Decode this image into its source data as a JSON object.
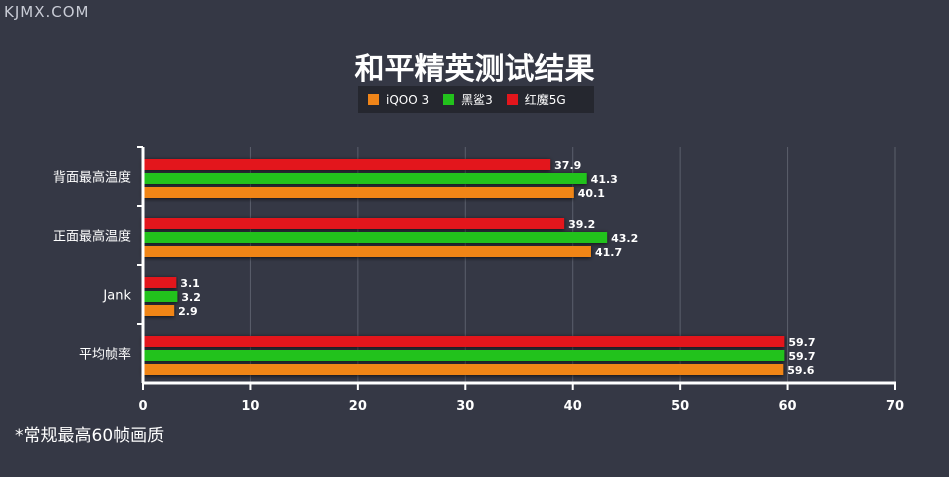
{
  "watermark": "KJMX.COM",
  "footnote": "*常规最高60帧画质",
  "colors": {
    "background": "#353845",
    "legend_bg": "#25272f",
    "grid": "#5b5f6c",
    "axis": "#ffffff"
  },
  "chart_data": {
    "type": "bar",
    "orientation": "horizontal",
    "title": "和平精英测试结果",
    "categories": [
      "背面最高温度",
      "正面最高温度",
      "Jank",
      "平均帧率"
    ],
    "series": [
      {
        "name": "iQOO 3",
        "color": "#f08519",
        "values": [
          40.1,
          41.7,
          2.9,
          59.6
        ]
      },
      {
        "name": "黑鲨3",
        "color": "#22c21c",
        "values": [
          41.3,
          43.2,
          3.2,
          59.7
        ]
      },
      {
        "name": "红魔5G",
        "color": "#e3161c",
        "values": [
          37.9,
          39.2,
          3.1,
          59.7
        ]
      }
    ],
    "bar_order_top_to_bottom": [
      "红魔5G",
      "黑鲨3",
      "iQOO 3"
    ],
    "xlim": [
      0,
      70
    ],
    "xticks": [
      0,
      10,
      20,
      30,
      40,
      50,
      60,
      70
    ],
    "grid": true,
    "legend_position": "top-center"
  }
}
